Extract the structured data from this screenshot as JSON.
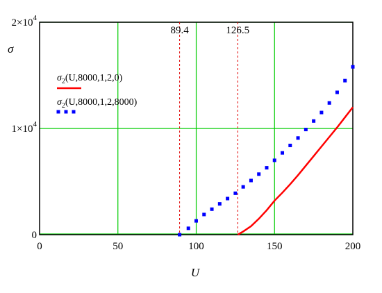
{
  "chart_data": {
    "type": "line",
    "xlabel": "U",
    "ylabel": "σ",
    "xlim": [
      0,
      200
    ],
    "ylim": [
      0,
      20000
    ],
    "grid": true,
    "legend_position": "top-left",
    "x_ticks": [
      {
        "value": 0,
        "label": "0"
      },
      {
        "value": 50,
        "label": "50"
      },
      {
        "value": 100,
        "label": "100"
      },
      {
        "value": 150,
        "label": "150"
      },
      {
        "value": 200,
        "label": "200"
      }
    ],
    "y_ticks": [
      {
        "value": 0,
        "base": "0",
        "exp": ""
      },
      {
        "value": 10000,
        "base": "1×10",
        "exp": "4"
      },
      {
        "value": 20000,
        "base": "2×10",
        "exp": "4"
      }
    ],
    "markers": [
      {
        "x": 89.4,
        "label": "89.4"
      },
      {
        "x": 126.5,
        "label": "126.5"
      }
    ],
    "series": [
      {
        "name": "σ2(U,8000,1,2,0)",
        "name_parts": {
          "fn": "σ",
          "sub": "2",
          "args": "(U,8000,1,2,0)"
        },
        "style": "solid",
        "color": "#ff0000",
        "x": [
          126.5,
          130,
          135,
          140,
          145,
          150,
          155,
          160,
          165,
          170,
          175,
          180,
          185,
          190,
          195,
          200
        ],
        "y": [
          0,
          300,
          800,
          1500,
          2300,
          3200,
          3950,
          4750,
          5600,
          6500,
          7400,
          8300,
          9200,
          10100,
          11050,
          12000
        ]
      },
      {
        "name": "σ2(U,8000,1,2,8000)",
        "name_parts": {
          "fn": "σ",
          "sub": "2",
          "args": "(U,8000,1,2,8000)"
        },
        "style": "dotted",
        "color": "#0000ff",
        "x": [
          89.4,
          95,
          100,
          105,
          110,
          115,
          120,
          125,
          130,
          135,
          140,
          145,
          150,
          155,
          160,
          165,
          170,
          175,
          180,
          185,
          190,
          195,
          200
        ],
        "y": [
          0,
          600,
          1300,
          1900,
          2400,
          2900,
          3400,
          3900,
          4500,
          5100,
          5700,
          6300,
          7000,
          7700,
          8400,
          9100,
          9900,
          10700,
          11500,
          12400,
          13400,
          14500,
          15800
        ]
      }
    ]
  }
}
